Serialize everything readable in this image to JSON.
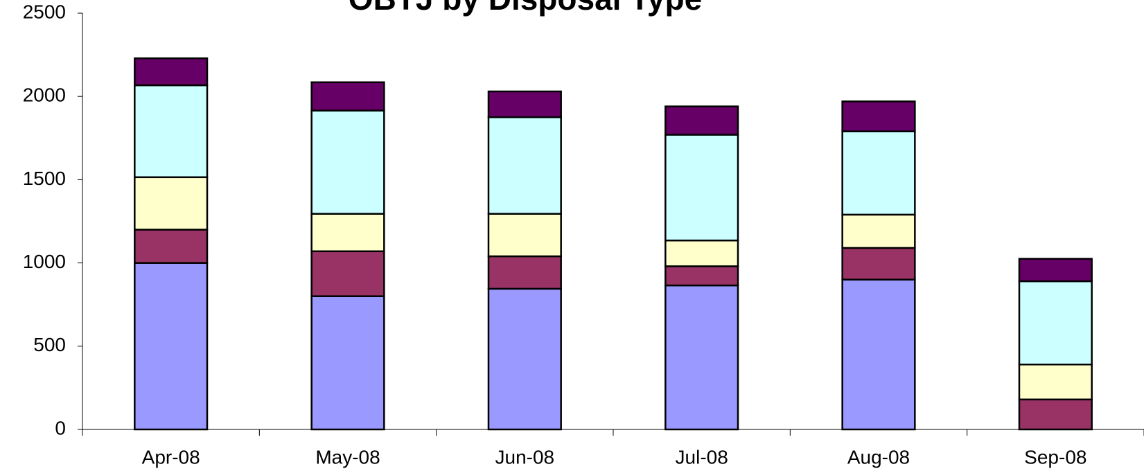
{
  "chart_data": {
    "type": "stacked_bar",
    "title": "OBTJ by Disposal Type",
    "categories": [
      "Apr-08",
      "May-08",
      "Jun-08",
      "Jul-08",
      "Aug-08",
      "Sep-08"
    ],
    "series": [
      {
        "color": "#9999ff",
        "values": [
          1000,
          800,
          845,
          865,
          900,
          0
        ]
      },
      {
        "color": "#993366",
        "values": [
          200,
          270,
          195,
          115,
          190,
          180
        ]
      },
      {
        "color": "#ffffcc",
        "values": [
          315,
          225,
          255,
          155,
          200,
          210
        ]
      },
      {
        "color": "#ccffff",
        "values": [
          552,
          620,
          580,
          635,
          500,
          500
        ]
      },
      {
        "color": "#660066",
        "values": [
          162,
          170,
          155,
          170,
          180,
          135
        ]
      }
    ],
    "ylim": [
      0,
      2500
    ],
    "yticks": [
      0,
      500,
      1000,
      1500,
      2000,
      2500
    ]
  }
}
